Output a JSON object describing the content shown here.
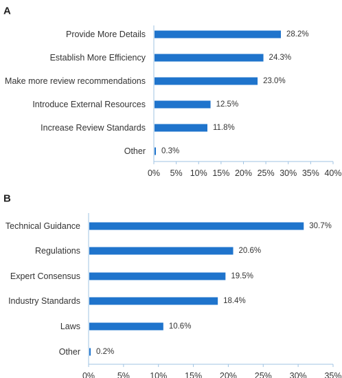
{
  "colors": {
    "bar": "#1f74cc",
    "axis": "#9fc3e3"
  },
  "chart_data": [
    {
      "type": "bar",
      "orientation": "horizontal",
      "panel_label": "A",
      "title": "",
      "xlabel": "",
      "ylabel": "",
      "categories": [
        "Provide More Details",
        "Establish More Efficiency",
        "Make more review recommendations",
        "Introduce External Resources",
        "Increase Review Standards",
        "Other"
      ],
      "values": [
        28.2,
        24.3,
        23.0,
        12.5,
        11.8,
        0.3
      ],
      "value_labels": [
        "28.2%",
        "24.3%",
        "23.0%",
        "12.5%",
        "11.8%",
        "0.3%"
      ],
      "xlim": [
        0,
        40
      ],
      "xticks": [
        0,
        5,
        10,
        15,
        20,
        25,
        30,
        35,
        40
      ],
      "xtick_labels": [
        "0%",
        "5%",
        "10%",
        "15%",
        "20%",
        "25%",
        "30%",
        "35%",
        "40%"
      ],
      "grid": false
    },
    {
      "type": "bar",
      "orientation": "horizontal",
      "panel_label": "B",
      "title": "",
      "xlabel": "",
      "ylabel": "",
      "categories": [
        "Technical Guidance",
        "Regulations",
        "Expert Consensus",
        "Industry Standards",
        "Laws",
        "Other"
      ],
      "values": [
        30.7,
        20.6,
        19.5,
        18.4,
        10.6,
        0.2
      ],
      "value_labels": [
        "30.7%",
        "20.6%",
        "19.5%",
        "18.4%",
        "10.6%",
        "0.2%"
      ],
      "xlim": [
        0,
        35
      ],
      "xticks": [
        0,
        5,
        10,
        15,
        20,
        25,
        30,
        35
      ],
      "xtick_labels": [
        "0%",
        "5%",
        "10%",
        "15%",
        "20%",
        "25%",
        "30%",
        "35%"
      ],
      "grid": false
    }
  ]
}
